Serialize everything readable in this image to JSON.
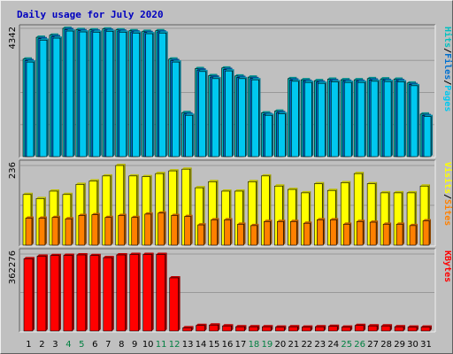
{
  "title": "Daily usage for July 2020",
  "colors": {
    "hits": "#00c0c0",
    "hits_light": "#00e0e0",
    "files": "#0070d0",
    "pages": "#00c8f0",
    "visits": "#ffff00",
    "sites": "#ff8000",
    "kbytes": "#ff0000",
    "title": "#0000c0",
    "weekend_label": "#008040",
    "panel_bg": "#c0c0c0"
  },
  "chart_data": {
    "type": "bar",
    "categories": [
      "1",
      "2",
      "3",
      "4",
      "5",
      "6",
      "7",
      "8",
      "9",
      "10",
      "11",
      "12",
      "13",
      "14",
      "15",
      "16",
      "17",
      "18",
      "19",
      "20",
      "21",
      "22",
      "23",
      "24",
      "25",
      "26",
      "27",
      "28",
      "29",
      "30",
      "31"
    ],
    "weekend_days": [
      "4",
      "5",
      "11",
      "12",
      "18",
      "19",
      "25",
      "26"
    ],
    "panels": [
      {
        "name": "hits-files-pages",
        "max_label": "4342",
        "ylim": [
          0,
          4342
        ],
        "legend": [
          {
            "text": "Hits",
            "color_key": "hits"
          },
          {
            "text": "/",
            "color_key": "sep"
          },
          {
            "text": "Files",
            "color_key": "files"
          },
          {
            "text": "/",
            "color_key": "sep"
          },
          {
            "text": "Pages",
            "color_key": "pages"
          }
        ],
        "series": [
          {
            "name": "Hits",
            "color_key": "hits",
            "values": [
              3300,
              4040,
              4110,
              4342,
              4300,
              4290,
              4320,
              4290,
              4260,
              4240,
              4260,
              3300,
              1490,
              2980,
              2740,
              3000,
              2730,
              2690,
              1480,
              1540,
              2640,
              2600,
              2570,
              2620,
              2600,
              2600,
              2640,
              2630,
              2620,
              2490,
              1440
            ]
          },
          {
            "name": "Files",
            "color_key": "files",
            "values": [
              3250,
              3990,
              4060,
              4300,
              4260,
              4250,
              4280,
              4250,
              4220,
              4200,
              4220,
              3250,
              1440,
              2930,
              2690,
              2950,
              2680,
              2640,
              1430,
              1490,
              2590,
              2550,
              2520,
              2570,
              2550,
              2550,
              2590,
              2580,
              2570,
              2440,
              1390
            ]
          },
          {
            "name": "Pages",
            "color_key": "pages",
            "values": [
              3200,
              3940,
              4010,
              4250,
              4220,
              4210,
              4240,
              4210,
              4180,
              4160,
              4180,
              3200,
              1400,
              2880,
              2640,
              2900,
              2640,
              2600,
              1400,
              1450,
              2550,
              2510,
              2480,
              2530,
              2510,
              2510,
              2550,
              2540,
              2530,
              2400,
              1360
            ]
          }
        ]
      },
      {
        "name": "visits-sites",
        "max_label": "236",
        "ylim": [
          0,
          236
        ],
        "legend": [
          {
            "text": "Visits",
            "color_key": "visits"
          },
          {
            "text": "/",
            "color_key": "sep"
          },
          {
            "text": "Sites",
            "color_key": "sites"
          }
        ],
        "series": [
          {
            "name": "Visits",
            "color_key": "visits",
            "values": [
              150,
              138,
              160,
              150,
              180,
              190,
              205,
              236,
              205,
              203,
              212,
              220,
              225,
              170,
              188,
              160,
              160,
              188,
              205,
              175,
              165,
              155,
              182,
              162,
              185,
              212,
              182,
              155,
              155,
              155,
              175
            ]
          },
          {
            "name": "Sites",
            "color_key": "sites",
            "values": [
              80,
              80,
              82,
              78,
              88,
              90,
              82,
              88,
              82,
              92,
              95,
              88,
              85,
              60,
              75,
              75,
              62,
              58,
              70,
              70,
              70,
              65,
              75,
              75,
              62,
              70,
              68,
              62,
              62,
              58,
              72
            ]
          }
        ]
      },
      {
        "name": "kbytes",
        "max_label": "362276",
        "ylim": [
          0,
          362276
        ],
        "legend": [
          {
            "text": "KBytes",
            "color_key": "kbytes"
          }
        ],
        "series": [
          {
            "name": "KBytes",
            "color_key": "kbytes",
            "values": [
              340000,
              352000,
              355000,
              356000,
              358000,
              355000,
              345000,
              358000,
              360000,
              360000,
              360000,
              250000,
              15000,
              26000,
              28000,
              24000,
              20000,
              20000,
              20000,
              18000,
              20000,
              18000,
              20000,
              22000,
              18000,
              26000,
              24000,
              24000,
              20000,
              18000,
              18000
            ]
          }
        ]
      }
    ]
  }
}
